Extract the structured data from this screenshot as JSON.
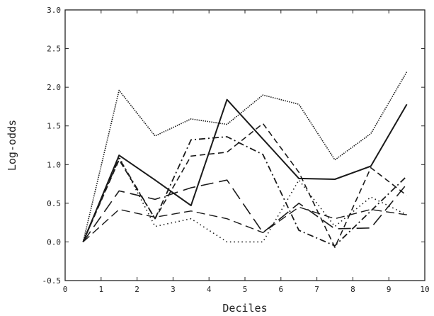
{
  "chart_data": {
    "type": "line",
    "xlabel": "Deciles",
    "ylabel": "Log-odds",
    "xlim": [
      0,
      10
    ],
    "ylim": [
      -0.5,
      3.0
    ],
    "x_ticks": [
      0,
      1,
      2,
      3,
      4,
      5,
      6,
      7,
      8,
      9,
      10
    ],
    "y_ticks": [
      -0.5,
      0.0,
      0.5,
      1.0,
      1.5,
      2.0,
      2.5,
      3.0
    ],
    "x_tick_labels": [
      "0",
      "1",
      "2",
      "3",
      "4",
      "5",
      "6",
      "7",
      "8",
      "9",
      "10"
    ],
    "y_tick_labels": [
      "-0.5",
      "0.0",
      "0.5",
      "1.0",
      "1.5",
      "2.0",
      "2.5",
      "3.0"
    ],
    "grid": false,
    "x": [
      0.5,
      1.5,
      2.5,
      3.5,
      4.5,
      5.5,
      6.5,
      7.5,
      8.5,
      9.5
    ],
    "series": [
      {
        "style": "densely-dotted",
        "values": [
          0.0,
          1.96,
          1.37,
          1.59,
          1.52,
          1.9,
          1.78,
          1.06,
          1.4,
          2.2
        ]
      },
      {
        "style": "solid",
        "values": [
          0.0,
          1.12,
          0.8,
          0.47,
          1.84,
          1.33,
          0.82,
          0.81,
          0.98,
          1.78
        ]
      },
      {
        "style": "dash-dot",
        "values": [
          0.0,
          1.08,
          0.3,
          1.32,
          1.36,
          1.13,
          0.15,
          -0.05,
          0.4,
          0.85
        ]
      },
      {
        "style": "short-dash",
        "values": [
          0.0,
          1.06,
          0.3,
          1.11,
          1.16,
          1.53,
          0.9,
          -0.07,
          0.96,
          0.6
        ]
      },
      {
        "style": "long-dash",
        "values": [
          0.0,
          0.66,
          0.55,
          0.7,
          0.8,
          0.12,
          0.5,
          0.17,
          0.18,
          0.75
        ]
      },
      {
        "style": "medium-dash",
        "values": [
          0.0,
          0.42,
          0.32,
          0.4,
          0.3,
          0.12,
          0.45,
          0.3,
          0.42,
          0.35
        ]
      },
      {
        "style": "sparse-dotted",
        "values": [
          0.0,
          1.1,
          0.2,
          0.3,
          0.0,
          0.0,
          0.8,
          0.2,
          0.58,
          0.35
        ]
      }
    ]
  }
}
